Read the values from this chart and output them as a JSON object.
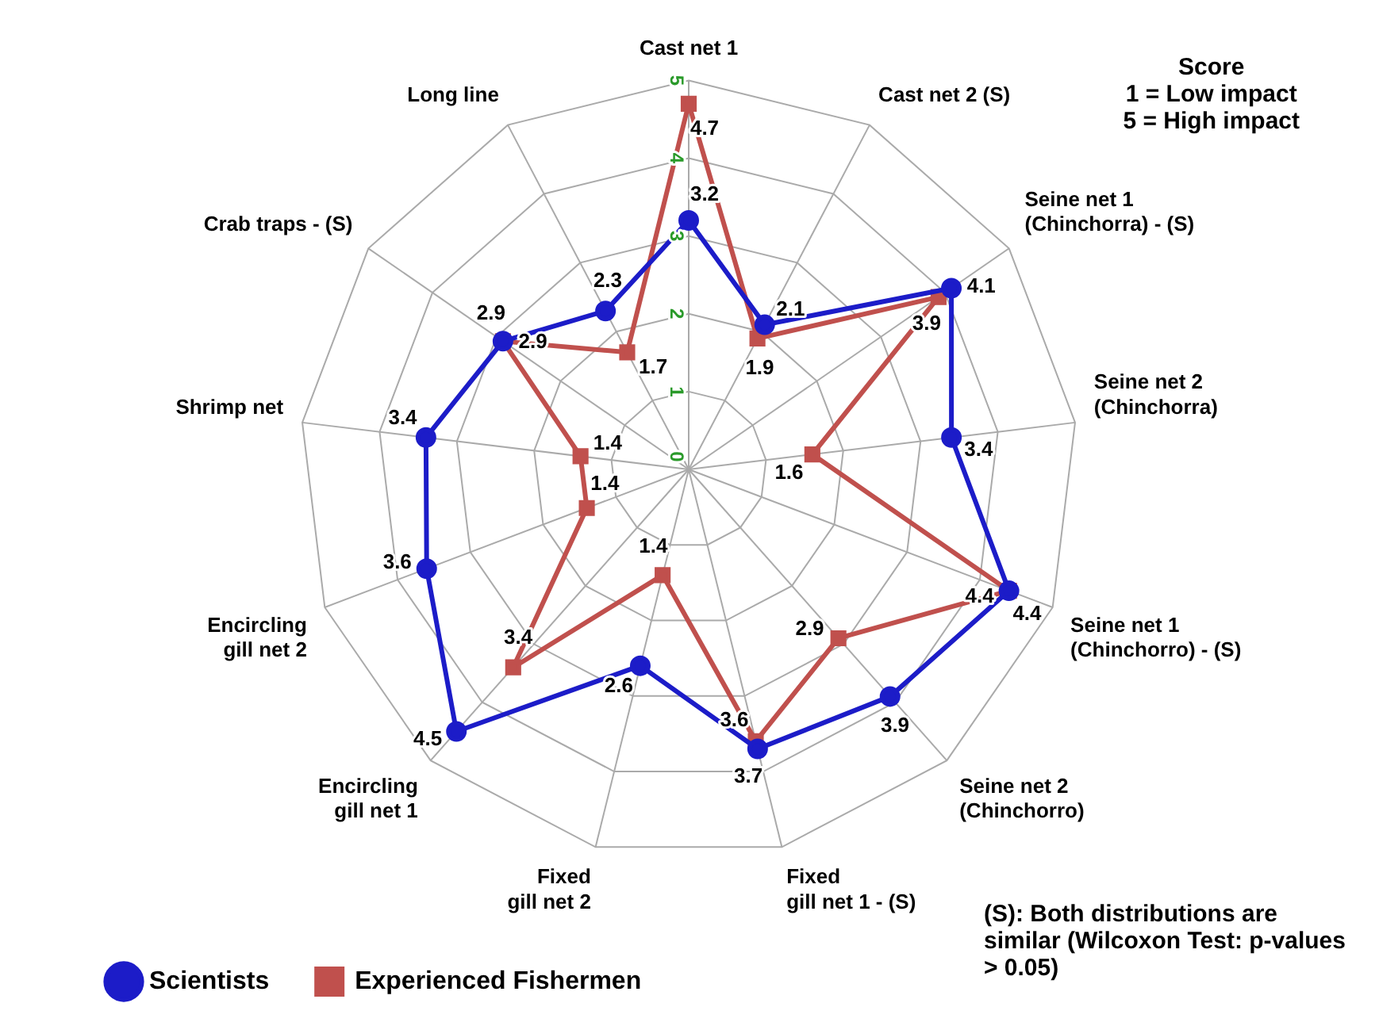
{
  "chart_data": {
    "type": "radar",
    "categories": [
      "Cast net 1",
      "Cast net 2 (S)",
      "Seine net 1\n(Chinchorra) - (S)",
      "Seine net 2\n(Chinchorra)",
      "Seine net 1\n(Chinchorro) - (S)",
      "Seine net 2\n(Chinchorro)",
      "Fixed\ngill net 1 - (S)",
      "Fixed\ngill net 2",
      "Encircling\ngill net 1",
      "Encircling\ngill net 2",
      "Shrimp net",
      "Crab traps - (S)",
      "Long line"
    ],
    "series": [
      {
        "name": "Scientists",
        "color": "#1c1cc8",
        "marker": "circle",
        "values": [
          3.2,
          2.1,
          4.1,
          3.4,
          4.4,
          3.9,
          3.7,
          2.6,
          4.5,
          3.6,
          3.4,
          2.9,
          2.3
        ]
      },
      {
        "name": "Experienced Fishermen",
        "color": "#c0504d",
        "marker": "square",
        "values": [
          4.7,
          1.9,
          3.9,
          1.6,
          4.4,
          2.9,
          3.6,
          1.4,
          3.4,
          1.4,
          1.4,
          2.9,
          1.7
        ]
      }
    ],
    "ylim": [
      0,
      5
    ],
    "yticks": [
      0,
      1,
      2,
      3,
      4,
      5
    ],
    "grid": true,
    "legend": "bottom",
    "data_labels": true,
    "annotations": [
      "Score\n1 = Low impact\n5 = High impact",
      "(S): Both distributions are similar (Wilcoxon Test: p-values > 0.05)"
    ]
  }
}
